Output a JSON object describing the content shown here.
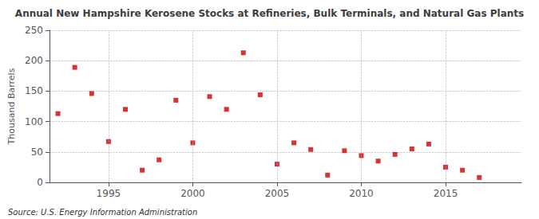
{
  "chart_data": {
    "type": "scatter",
    "title": "Annual New Hampshire Kerosene Stocks at Refineries, Bulk Terminals, and Natural Gas Plants",
    "ylabel": "Thousand Barrels",
    "annotations": [
      "Source: U.S. Energy Information Administration"
    ],
    "x": [
      1992,
      1993,
      1994,
      1995,
      1996,
      1997,
      1998,
      1999,
      2000,
      2001,
      2002,
      2003,
      2004,
      2005,
      2006,
      2007,
      2008,
      2009,
      2010,
      2011,
      2012,
      2013,
      2014,
      2015,
      2016,
      2017,
      2018
    ],
    "values": [
      113,
      189,
      146,
      67,
      120,
      20,
      37,
      135,
      65,
      141,
      120,
      213,
      144,
      30,
      65,
      54,
      12,
      52,
      44,
      35,
      46,
      55,
      63,
      25,
      20,
      8,
      null
    ],
    "color": "#cc0000",
    "marker": "square",
    "xlim": [
      1991.5,
      2019.5
    ],
    "xticks": [
      1995,
      2000,
      2005,
      2010,
      2015
    ],
    "ylim": [
      0,
      250
    ],
    "yticks": [
      0,
      50,
      100,
      150,
      200,
      250
    ],
    "grid": true
  }
}
